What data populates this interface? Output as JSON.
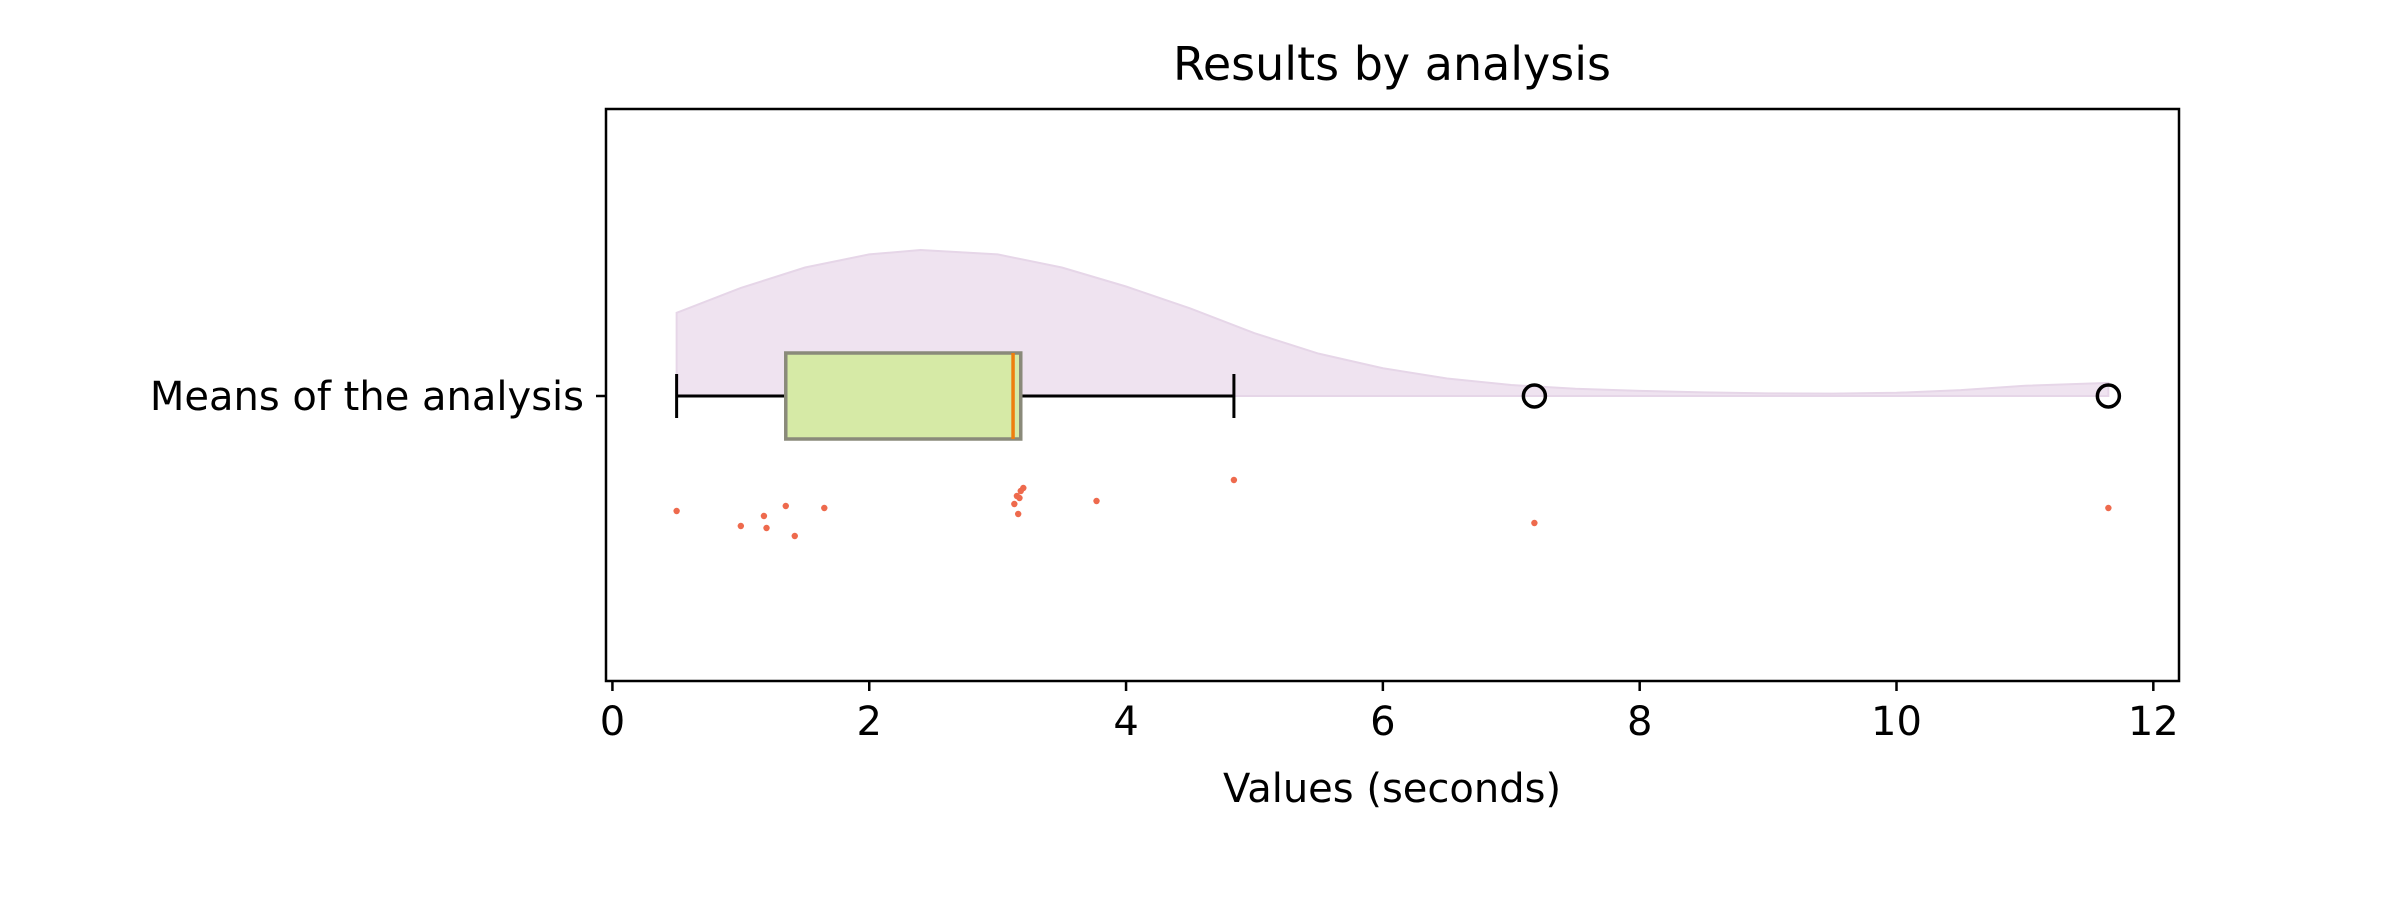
{
  "chart_data": {
    "type": "box",
    "title": "Results by analysis",
    "xlabel": "Values (seconds)",
    "ylabel": "",
    "categories": [
      "Means of the analysis"
    ],
    "xlim": [
      -0.05,
      12.2
    ],
    "xticks": [
      0,
      2,
      4,
      6,
      8,
      10,
      12
    ],
    "box": {
      "whisker_low": 0.5,
      "q1": 1.35,
      "median": 3.12,
      "q3": 3.18,
      "whisker_high": 4.84,
      "fliers": [
        7.18,
        11.65
      ]
    },
    "points": [
      0.5,
      1.0,
      1.18,
      1.2,
      1.35,
      1.42,
      1.65,
      3.13,
      3.15,
      3.16,
      3.17,
      3.18,
      3.2,
      3.77,
      4.84,
      7.18,
      11.65
    ],
    "density": {
      "x": [
        0.5,
        1.0,
        1.5,
        2.0,
        2.4,
        3.0,
        3.5,
        4.0,
        4.5,
        5.0,
        5.5,
        6.0,
        6.5,
        7.0,
        7.5,
        8.0,
        8.5,
        9.0,
        9.5,
        10.0,
        10.5,
        11.0,
        11.65
      ],
      "y": [
        0.57,
        0.74,
        0.88,
        0.97,
        1.0,
        0.97,
        0.88,
        0.75,
        0.6,
        0.43,
        0.29,
        0.19,
        0.12,
        0.075,
        0.05,
        0.035,
        0.025,
        0.018,
        0.016,
        0.022,
        0.04,
        0.07,
        0.09
      ]
    },
    "colors": {
      "box_fill": "#d6eaa6",
      "box_edge": "#8a8a7a",
      "median": "#ee7f0e",
      "density": "#efe3f0",
      "points": "#ee6a4d"
    },
    "grid": false
  }
}
